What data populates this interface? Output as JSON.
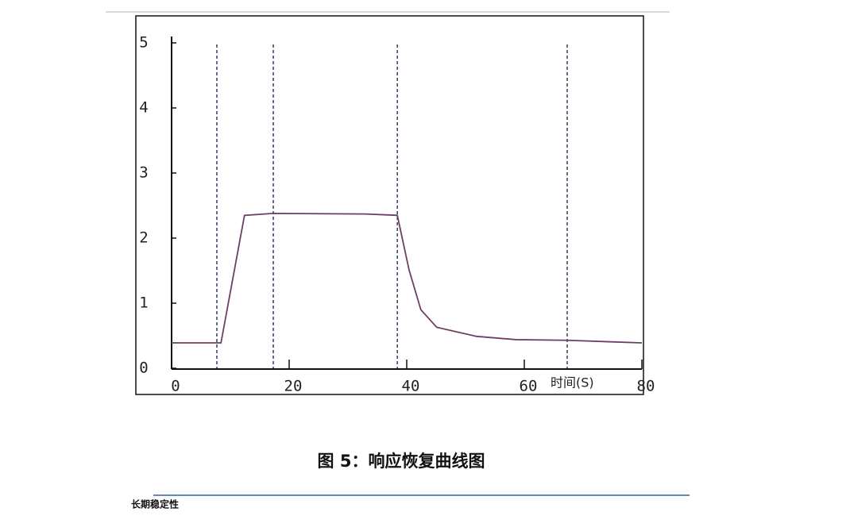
{
  "chart_data": {
    "type": "line",
    "xlabel": "时间(S)",
    "x": [
      0,
      8.4,
      12.4,
      17.3,
      33,
      38.4,
      40.4,
      42.4,
      45.1,
      51.9,
      58.6,
      67.3,
      80
    ],
    "values": [
      0.39,
      0.39,
      2.35,
      2.38,
      2.37,
      2.35,
      1.51,
      0.9,
      0.63,
      0.49,
      0.44,
      0.43,
      0.39
    ],
    "color": "#6e3f62",
    "xlim": [
      0,
      80
    ],
    "xticks": [
      0,
      20,
      40,
      60,
      80
    ],
    "ylim": [
      0,
      5
    ],
    "yticks": [
      0,
      1,
      2,
      3,
      4,
      5
    ],
    "vlines": [
      7.7,
      17.3,
      38.4,
      67.3
    ]
  },
  "caption": "图 5：响应恢复曲线图",
  "section": "长期稳定性"
}
